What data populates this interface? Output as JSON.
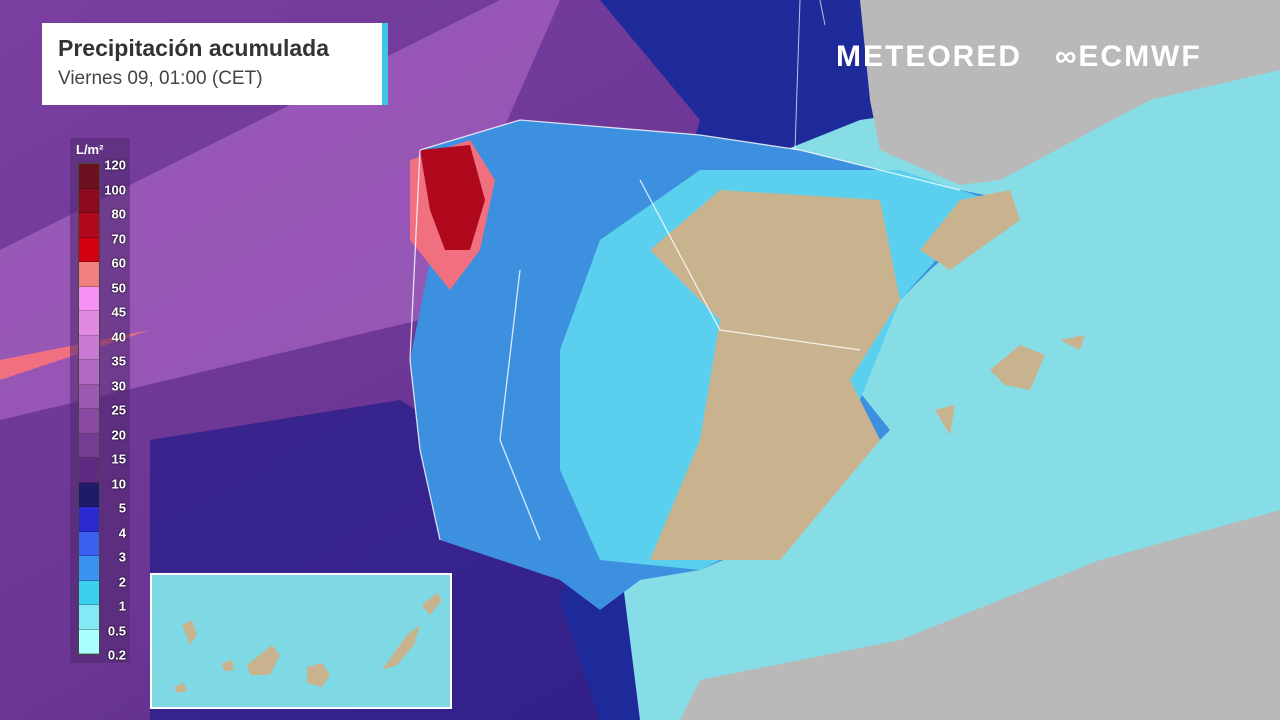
{
  "header": {
    "title": "Precipitación acumulada",
    "subtitle": "Viernes 09, 01:00 (CET)"
  },
  "branding": {
    "meteored": "METEORED",
    "ecmwf": "ECMWF"
  },
  "legend": {
    "unit": "L/m²",
    "labels": [
      "120",
      "100",
      "80",
      "70",
      "60",
      "50",
      "45",
      "40",
      "35",
      "30",
      "25",
      "20",
      "15",
      "10",
      "5",
      "4",
      "3",
      "2",
      "1",
      "0.5",
      "0.2"
    ],
    "colors": [
      "#6e1020",
      "#8c0b20",
      "#b0081c",
      "#d30010",
      "#f08080",
      "#f590f5",
      "#e08ae2",
      "#c97ad2",
      "#b26ac2",
      "#9c5ab2",
      "#8a4aa2",
      "#763c94",
      "#5f2b82",
      "#1f1a6a",
      "#2a2ad0",
      "#3b60f0",
      "#3b92f0",
      "#3bd0f0",
      "#84e8f5",
      "#acffff"
    ]
  },
  "colors": {
    "sea": "#86dde6",
    "land_dry": "#c9b38f",
    "land_outside": "#b9b9b9",
    "accent": "#3fc3e6"
  }
}
